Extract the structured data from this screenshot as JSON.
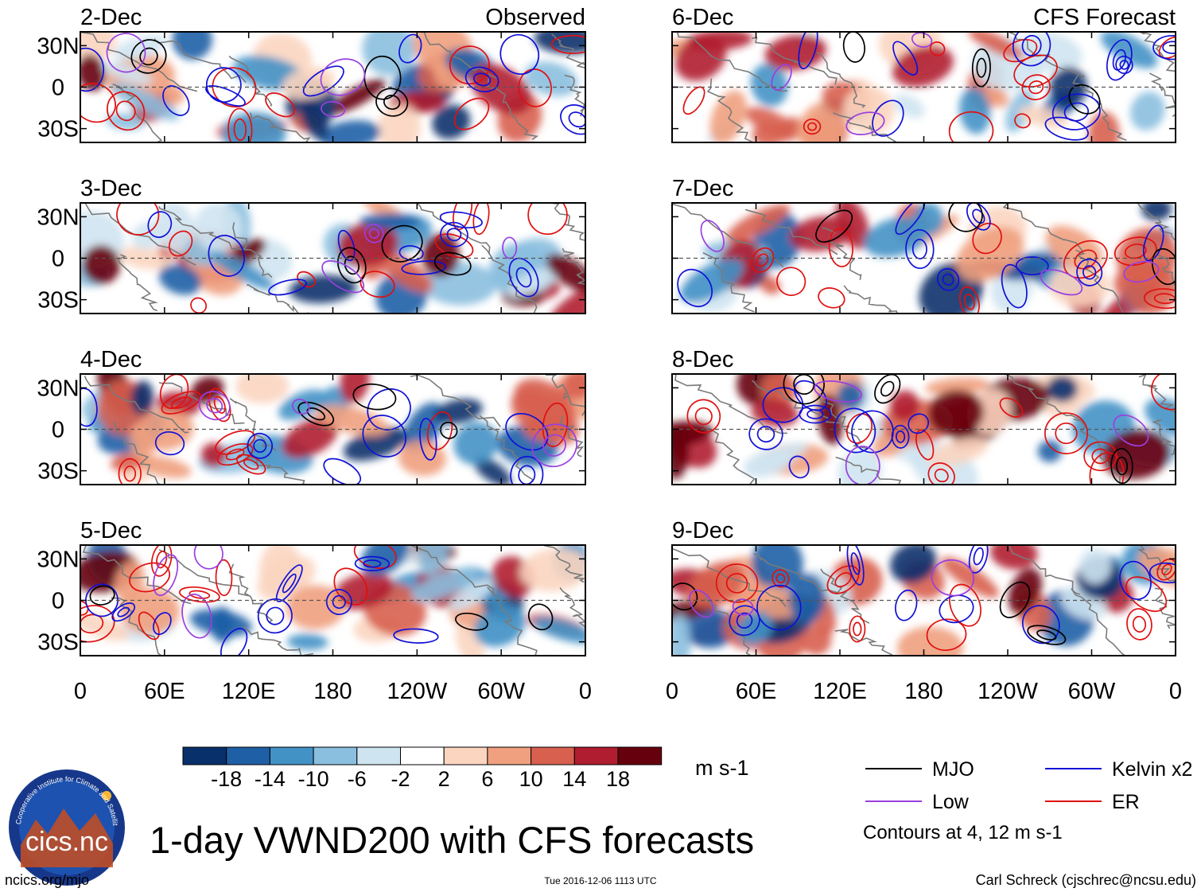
{
  "chart_data": {
    "type": "heatmap",
    "title": "1-day VWND200 with CFS forecasts",
    "variable": "VWND200",
    "units": "m s-1",
    "observed_label": "Observed",
    "forecast_label": "CFS Forecast",
    "x_ticks": [
      "0",
      "60E",
      "120E",
      "180",
      "120W",
      "60W",
      "0"
    ],
    "y_ticks": [
      "30N",
      "0",
      "30S"
    ],
    "observed_dates": [
      "2-Dec",
      "3-Dec",
      "4-Dec",
      "5-Dec"
    ],
    "forecast_dates": [
      "6-Dec",
      "7-Dec",
      "8-Dec",
      "9-Dec"
    ],
    "colorbar": {
      "ticks": [
        "-18",
        "-14",
        "-10",
        "-6",
        "-2",
        "2",
        "6",
        "10",
        "14",
        "18"
      ],
      "colors": [
        "#08306b",
        "#1f5fa6",
        "#4292c6",
        "#8bbfdf",
        "#cfe4f1",
        "#ffffff",
        "#fbd5c0",
        "#f0a07e",
        "#d8604f",
        "#b01d30",
        "#67000d"
      ]
    },
    "legend": [
      {
        "label": "MJO",
        "color": "#000000"
      },
      {
        "label": "Kelvin x2",
        "color": "#1010d8"
      },
      {
        "label": "Low",
        "color": "#9a3fe0"
      },
      {
        "label": "ER",
        "color": "#e01010"
      }
    ],
    "contour_note": "Contours at 4, 12 m s-1"
  },
  "footer": {
    "logo_text": "cics.nc",
    "logo_ring_text": "Cooperative Institute for Climate and Satellites",
    "website": "ncics.org/mjo",
    "timestamp": "Tue 2016-12-06 1113 UTC",
    "author": "Carl Schreck (cjschrec@ncsu.edu)"
  }
}
